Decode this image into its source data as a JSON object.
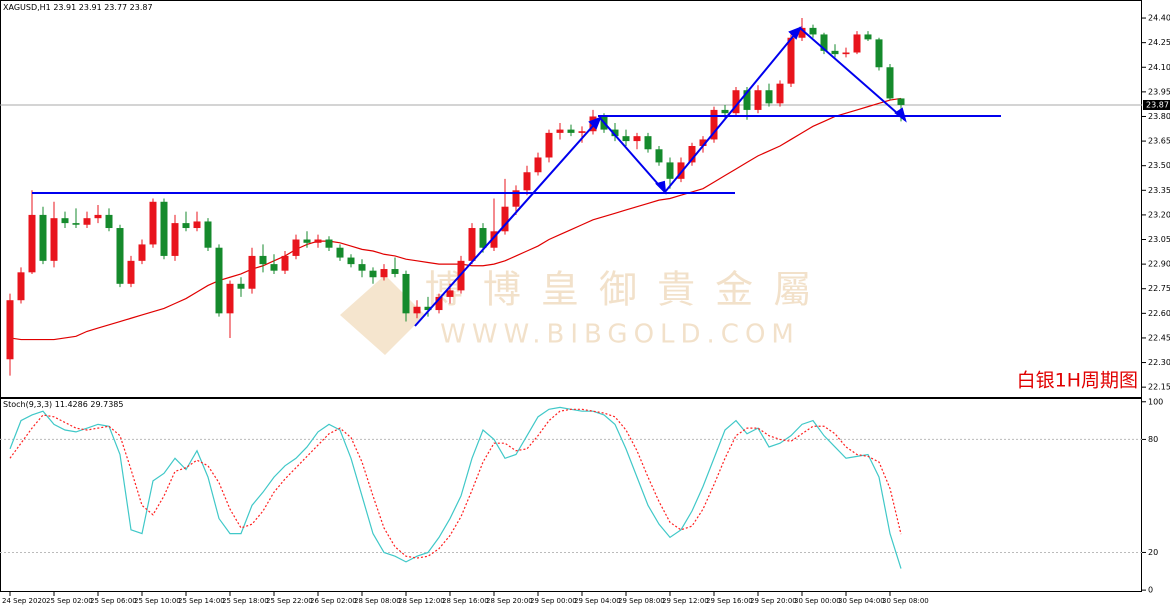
{
  "chart_data": [
    {
      "type": "candlestick",
      "title": "XAGUSD,H1",
      "annotation": "白银1H周期图",
      "watermark": "博 博 皇 御 貴 金 屬",
      "watermark_url": "WWW.BIBGOLD.COM",
      "up_color": "#e8141c",
      "down_color": "#158a2c",
      "open": [
        22.32,
        22.68,
        22.85,
        23.2,
        22.92,
        23.18,
        23.15,
        23.14,
        23.18,
        23.2,
        23.12,
        22.78,
        22.92,
        23.02,
        23.28,
        22.95,
        23.15,
        23.12,
        23.16,
        23.0,
        22.6,
        22.78,
        22.75,
        22.95,
        22.9,
        22.86,
        22.95,
        23.05,
        23.03,
        23.05,
        23.0,
        22.94,
        22.9,
        22.86,
        22.82,
        22.87,
        22.84,
        22.6,
        22.64,
        22.62,
        22.7,
        22.74,
        22.92,
        23.12,
        23.0,
        23.1,
        23.25,
        23.35,
        23.46,
        23.55,
        23.7,
        23.72,
        23.7,
        23.71,
        23.8,
        23.72,
        23.68,
        23.65,
        23.68,
        23.6,
        23.52,
        23.42,
        23.52,
        23.62,
        23.66,
        23.84,
        23.82,
        23.96,
        23.84,
        23.96,
        23.88,
        24.0,
        24.28,
        24.34,
        24.3,
        24.2,
        24.18,
        24.19,
        24.3,
        24.27,
        24.1,
        23.91
      ],
      "high": [
        22.72,
        22.88,
        23.35,
        23.25,
        23.28,
        23.22,
        23.24,
        23.22,
        23.26,
        23.24,
        23.14,
        22.95,
        23.05,
        23.3,
        23.3,
        23.2,
        23.22,
        23.22,
        23.18,
        23.02,
        22.8,
        22.82,
        23.0,
        23.02,
        22.96,
        22.98,
        23.08,
        23.1,
        23.08,
        23.07,
        23.02,
        22.96,
        22.93,
        22.88,
        22.9,
        22.94,
        22.86,
        22.68,
        22.7,
        22.72,
        22.78,
        22.95,
        23.15,
        23.15,
        23.3,
        23.42,
        23.38,
        23.5,
        23.58,
        23.72,
        23.76,
        23.75,
        23.74,
        23.84,
        23.82,
        23.76,
        23.72,
        23.7,
        23.7,
        23.62,
        23.55,
        23.55,
        23.64,
        23.68,
        23.86,
        23.87,
        23.98,
        23.98,
        23.99,
        24.0,
        24.02,
        24.3,
        24.4,
        24.36,
        24.31,
        24.24,
        24.22,
        24.32,
        24.32,
        24.28,
        24.12,
        23.91
      ],
      "low": [
        22.22,
        22.66,
        22.84,
        22.9,
        22.88,
        23.12,
        23.12,
        23.12,
        23.15,
        23.1,
        22.76,
        22.76,
        22.9,
        23.0,
        22.93,
        22.92,
        23.1,
        23.1,
        22.98,
        22.58,
        22.45,
        22.7,
        22.72,
        22.85,
        22.84,
        22.84,
        22.93,
        23.0,
        23.0,
        22.98,
        22.92,
        22.88,
        22.82,
        22.78,
        22.8,
        22.82,
        22.55,
        22.57,
        22.58,
        22.6,
        22.66,
        22.72,
        22.9,
        22.97,
        22.98,
        23.08,
        23.2,
        23.32,
        23.44,
        23.52,
        23.66,
        23.68,
        23.64,
        23.69,
        23.7,
        23.65,
        23.62,
        23.6,
        23.58,
        23.5,
        23.36,
        23.4,
        23.5,
        23.58,
        23.64,
        23.78,
        23.8,
        23.78,
        23.82,
        23.86,
        23.86,
        23.98,
        24.26,
        24.28,
        24.18,
        24.16,
        24.16,
        24.18,
        24.26,
        24.08,
        23.9,
        23.77
      ],
      "close": [
        22.68,
        22.85,
        23.2,
        22.92,
        23.18,
        23.15,
        23.14,
        23.18,
        23.2,
        23.12,
        22.78,
        22.92,
        23.02,
        23.28,
        22.95,
        23.15,
        23.12,
        23.16,
        23.0,
        22.6,
        22.78,
        22.75,
        22.95,
        22.9,
        22.86,
        22.95,
        23.05,
        23.03,
        23.05,
        23.0,
        22.94,
        22.9,
        22.86,
        22.82,
        22.87,
        22.84,
        22.6,
        22.64,
        22.62,
        22.7,
        22.74,
        22.92,
        23.12,
        23.0,
        23.1,
        23.25,
        23.35,
        23.46,
        23.55,
        23.7,
        23.72,
        23.7,
        23.71,
        23.8,
        23.72,
        23.68,
        23.65,
        23.68,
        23.6,
        23.52,
        23.42,
        23.52,
        23.62,
        23.66,
        23.84,
        23.82,
        23.96,
        23.84,
        23.96,
        23.88,
        24.0,
        24.28,
        24.34,
        24.3,
        24.2,
        24.18,
        24.19,
        24.3,
        24.27,
        24.1,
        23.91,
        23.87
      ],
      "series": [
        {
          "color": "#e00000",
          "values": [
            22.45,
            22.44,
            22.44,
            22.44,
            22.44,
            22.45,
            22.46,
            22.49,
            22.51,
            22.53,
            22.55,
            22.57,
            22.59,
            22.61,
            22.63,
            22.66,
            22.69,
            22.73,
            22.77,
            22.8,
            22.82,
            22.84,
            22.87,
            22.89,
            22.92,
            22.95,
            22.99,
            23.02,
            23.04,
            23.04,
            23.03,
            23.01,
            22.99,
            22.98,
            22.96,
            22.95,
            22.93,
            22.92,
            22.91,
            22.9,
            22.9,
            22.9,
            22.89,
            22.89,
            22.9,
            22.92,
            22.95,
            22.98,
            23.01,
            23.05,
            23.08,
            23.11,
            23.14,
            23.17,
            23.19,
            23.21,
            23.23,
            23.25,
            23.27,
            23.29,
            23.3,
            23.32,
            23.34,
            23.36,
            23.4,
            23.44,
            23.48,
            23.52,
            23.56,
            23.59,
            23.62,
            23.66,
            23.7,
            23.74,
            23.77,
            23.8,
            23.82,
            23.84,
            23.86,
            23.88,
            23.9,
            23.91
          ]
        }
      ],
      "ylim": [
        22.09,
        24.51
      ],
      "yticks": [
        {
          "value": 24.4,
          "label": "24.40"
        },
        24.25,
        {
          "value": 24.1,
          "label": "24.10"
        },
        23.95,
        {
          "value": 23.8,
          "label": "23.80"
        },
        23.65,
        {
          "value": 23.5,
          "label": "23.50"
        },
        23.35,
        {
          "value": 23.2,
          "label": "23.20"
        },
        23.05,
        {
          "value": 22.9,
          "label": "22.90"
        },
        22.75,
        {
          "value": 22.6,
          "label": "22.60"
        },
        22.45,
        {
          "value": 22.3,
          "label": "22.30"
        },
        22.15
      ]
    },
    {
      "type": "line",
      "title": "Stoch(9,3,3)",
      "categories": [
        "24 Sep 2020",
        null,
        null,
        null,
        "25 Sep 02:00",
        null,
        null,
        null,
        "25 Sep 06:00",
        null,
        null,
        null,
        "25 Sep 10:00",
        null,
        null,
        null,
        "25 Sep 14:00",
        null,
        null,
        null,
        "25 Sep 18:00",
        null,
        null,
        null,
        "25 Sep 22:00",
        null,
        null,
        null,
        "26 Sep 02:00",
        null,
        null,
        null,
        "28 Sep 08:00",
        null,
        null,
        null,
        "28 Sep 12:00",
        null,
        null,
        null,
        "28 Sep 16:00",
        null,
        null,
        null,
        "28 Sep 20:00",
        null,
        null,
        null,
        "29 Sep 00:00",
        null,
        null,
        null,
        "29 Sep 04:00",
        null,
        null,
        null,
        "29 Sep 08:00",
        null,
        null,
        null,
        "29 Sep 12:00",
        null,
        null,
        null,
        "29 Sep 16:00",
        null,
        null,
        null,
        "29 Sep 20:00",
        null,
        null,
        null,
        "30 Sep 00:00",
        null,
        null,
        null,
        "30 Sep 04:00",
        null,
        null,
        null,
        "30 Sep 08:00",
        null
      ],
      "series": [
        {
          "color": "#40c8c8",
          "values": [
            75,
            90,
            93,
            95,
            88,
            85,
            84,
            86,
            88,
            87,
            72,
            32,
            30,
            58,
            62,
            70,
            64,
            74,
            60,
            38,
            30,
            30,
            45,
            52,
            60,
            66,
            70,
            76,
            84,
            88,
            85,
            70,
            50,
            30,
            20,
            18,
            15,
            18,
            20,
            28,
            38,
            50,
            70,
            85,
            80,
            70,
            72,
            82,
            92,
            96,
            97,
            96,
            95,
            95,
            93,
            88,
            75,
            60,
            45,
            35,
            28,
            32,
            42,
            55,
            70,
            85,
            90,
            83,
            86,
            76,
            78,
            82,
            88,
            90,
            82,
            76,
            70,
            71,
            72,
            60,
            30,
            11.4286
          ]
        },
        {
          "color": "#ff2020",
          "dashed": true,
          "values": [
            70,
            78,
            86,
            93,
            92,
            89,
            86,
            85,
            86,
            87,
            82,
            64,
            45,
            40,
            50,
            63,
            65,
            69,
            66,
            57,
            43,
            33,
            35,
            42,
            52,
            59,
            65,
            71,
            77,
            83,
            86,
            81,
            68,
            50,
            33,
            23,
            18,
            17,
            18,
            22,
            29,
            39,
            53,
            68,
            78,
            78,
            74,
            75,
            82,
            90,
            95,
            96,
            96,
            95,
            94,
            92,
            85,
            74,
            60,
            47,
            36,
            32,
            34,
            43,
            56,
            70,
            82,
            86,
            86,
            82,
            80,
            79,
            83,
            87,
            87,
            83,
            76,
            72,
            71,
            68,
            54,
            29.7385
          ]
        }
      ],
      "ylim": [
        -1,
        102
      ],
      "yticks": [
        100,
        80,
        20,
        0
      ],
      "grid": [
        80,
        20
      ]
    }
  ]
}
